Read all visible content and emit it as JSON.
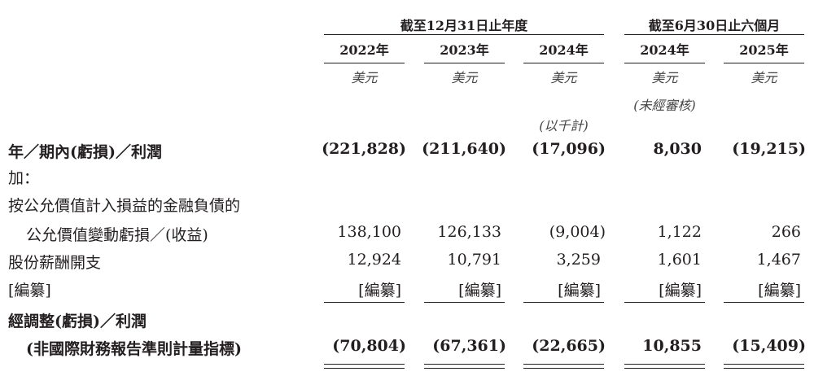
{
  "header": {
    "group_annual": "截至12月31日止年度",
    "group_interim": "截至6月30日止六個月",
    "years": [
      "2022年",
      "2023年",
      "2024年",
      "2024年",
      "2025年"
    ],
    "currency": [
      "美元",
      "美元",
      "美元",
      "美元",
      "美元"
    ],
    "unaudited": "(未經審核)",
    "in_thousands": "(以千計)"
  },
  "rows": [
    {
      "label": "年／期內(虧損)／利潤",
      "values": [
        "(221,828)",
        "(211,640)",
        "(17,096)",
        "8,030",
        "(19,215)"
      ]
    },
    {
      "label": "加：",
      "values": []
    },
    {
      "label": "按公允價值計入損益的金融負債的",
      "values": []
    },
    {
      "label": "公允價值變動虧損／(收益)",
      "values": [
        "138,100",
        "126,133",
        "(9,004)",
        "1,122",
        "266"
      ]
    },
    {
      "label": "股份薪酬開支",
      "values": [
        "12,924",
        "10,791",
        "3,259",
        "1,601",
        "1,467"
      ]
    },
    {
      "label": "[編纂]",
      "values": [
        "[編纂]",
        "[編纂]",
        "[編纂]",
        "[編纂]",
        "[編纂]"
      ]
    },
    {
      "label": "經調整(虧損)／利潤",
      "values": []
    },
    {
      "label": "(非國際財務報告準則計量指標)",
      "values": [
        "(70,804)",
        "(67,361)",
        "(22,665)",
        "10,855",
        "(15,409)"
      ]
    }
  ]
}
